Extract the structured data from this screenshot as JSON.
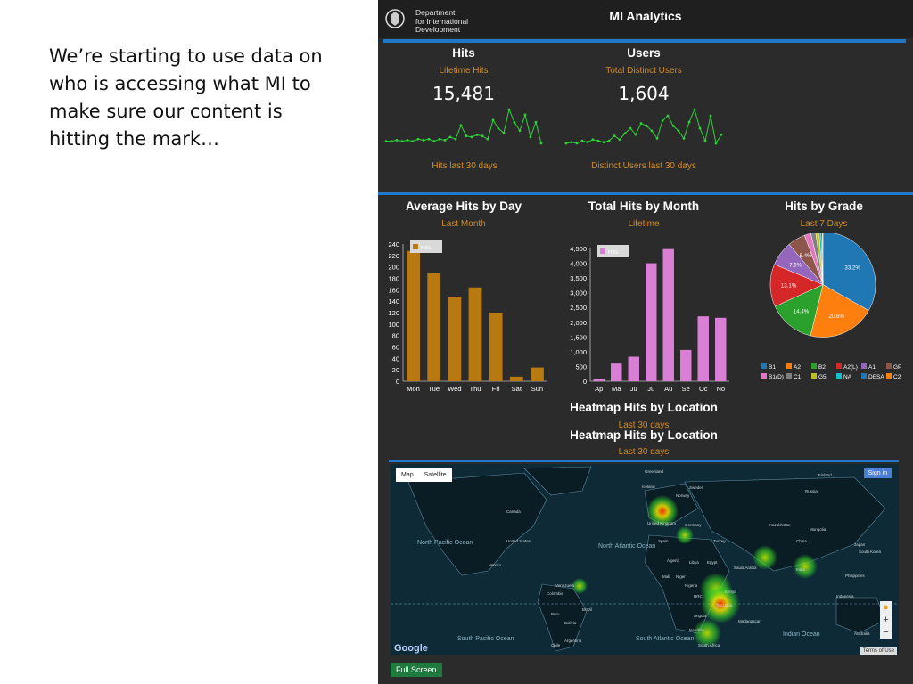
{
  "slide_text": "We’re starting to use data on who is accessing what MI to make sure our content is hitting the mark…",
  "header": {
    "dept_line1": "Department",
    "dept_line2": "for International",
    "dept_line3": "Development",
    "title": "MI Analytics"
  },
  "hits": {
    "title": "Hits",
    "subtitle": "Lifetime Hits",
    "value": "15,481",
    "footer": "Hits last 30 days"
  },
  "users": {
    "title": "Users",
    "subtitle": "Total Distinct Users",
    "value": "1,604",
    "footer": "Distinct Users last 30 days"
  },
  "avg_day": {
    "title": "Average Hits by Day",
    "subtitle": "Last Month"
  },
  "total_month": {
    "title": "Total Hits by Month",
    "subtitle": "Lifetime"
  },
  "grade": {
    "title": "Hits by Grade",
    "subtitle": "Last 7 Days"
  },
  "heatmap": {
    "title": "Heatmap Hits by Location",
    "subtitle": "Last 30 days"
  },
  "map": {
    "map_label": "Map",
    "satellite_label": "Satellite",
    "sign_in": "Sign in",
    "google": "Google",
    "terms": "Terms of Use",
    "full_screen": "Full Screen"
  },
  "colors": {
    "accent_blue": "#1f78c8",
    "orange_text": "#d38b23",
    "bar_gold": "#b87a10",
    "bar_pink": "#d97fd6",
    "sparkline": "#2fd23a"
  },
  "chart_data": [
    {
      "type": "line",
      "name": "hits-sparkline",
      "values": [
        10,
        10,
        11,
        10,
        11,
        10,
        12,
        11,
        12,
        10,
        12,
        11,
        14,
        12,
        25,
        15,
        14,
        16,
        15,
        12,
        30,
        22,
        18,
        40,
        28,
        20,
        35,
        14,
        28,
        8
      ]
    },
    {
      "type": "line",
      "name": "users-sparkline",
      "values": [
        8,
        9,
        8,
        10,
        9,
        11,
        10,
        9,
        10,
        14,
        11,
        16,
        20,
        15,
        24,
        22,
        18,
        12,
        26,
        30,
        22,
        18,
        12,
        25,
        35,
        20,
        10,
        30,
        8,
        15
      ]
    },
    {
      "type": "bar",
      "categories": [
        "Mon",
        "Tue",
        "Wed",
        "Thu",
        "Fri",
        "Sat",
        "Sun"
      ],
      "series": [
        {
          "name": "Hits",
          "values": [
            228,
            190,
            148,
            164,
            120,
            8,
            24
          ]
        }
      ],
      "yticks": [
        0,
        20,
        40,
        60,
        80,
        100,
        120,
        140,
        160,
        180,
        200,
        220,
        240
      ],
      "ylim": [
        0,
        240
      ]
    },
    {
      "type": "bar",
      "categories": [
        "Ap",
        "Ma",
        "Ju",
        "Ju",
        "Au",
        "Se",
        "Oc",
        "No"
      ],
      "series": [
        {
          "name": "Hits",
          "values": [
            80,
            600,
            830,
            4000,
            4480,
            1060,
            2200,
            2150
          ]
        }
      ],
      "yticks": [
        "0",
        "500",
        "1,000",
        "1,500",
        "2,000",
        "2,500",
        "3,000",
        "3,500",
        "4,000",
        "4,500"
      ],
      "ylim": [
        0,
        4500
      ]
    },
    {
      "type": "pie",
      "slices": [
        {
          "label": "B1",
          "value": 33.2,
          "color": "#1f77b4",
          "text": "33.2%"
        },
        {
          "label": "A2",
          "value": 20.6,
          "color": "#ff7f0e",
          "text": "20.6%"
        },
        {
          "label": "B2",
          "value": 14.4,
          "color": "#2ca02c",
          "text": "14.4%"
        },
        {
          "label": "A2(L)",
          "value": 13.1,
          "color": "#d62728",
          "text": "13.1%"
        },
        {
          "label": "A1",
          "value": 7.6,
          "color": "#9467bd",
          "text": "7.6%"
        },
        {
          "label": "GP",
          "value": 5.4,
          "color": "#8c564b",
          "text": "5.4%"
        },
        {
          "label": "B1(D)",
          "value": 2.0,
          "color": "#e377c2",
          "text": ""
        },
        {
          "label": "C1",
          "value": 1.5,
          "color": "#7f7f7f",
          "text": ""
        },
        {
          "label": "G5",
          "value": 1.0,
          "color": "#bcbd22",
          "text": ""
        },
        {
          "label": "NA",
          "value": 0.6,
          "color": "#17becf",
          "text": ""
        },
        {
          "label": "DESA",
          "value": 0.4,
          "color": "#1f77b4",
          "text": ""
        },
        {
          "label": "C2",
          "value": 0.2,
          "color": "#ff7f0e",
          "text": ""
        }
      ]
    }
  ],
  "map_labels": [
    "Greenland",
    "Iceland",
    "Finland",
    "Norway",
    "Sweden",
    "Russia",
    "Canada",
    "United Kingdom",
    "Germany",
    "Kazakhstan",
    "Mongolia",
    "United States",
    "Spain",
    "Turkey",
    "China",
    "Japan",
    "South Korea",
    "North Pacific Ocean",
    "North Atlantic Ocean",
    "Mexico",
    "Algeria",
    "Libya",
    "Egypt",
    "Saudi Arabia",
    "India",
    "Philippines",
    "Mali",
    "Niger",
    "Nigeria",
    "Venezuela",
    "Colombia",
    "Brazil",
    "Peru",
    "Bolivia",
    "DRC",
    "Kenya",
    "Tanzania",
    "Angola",
    "Namibia",
    "Madagascar",
    "South Africa",
    "Indonesia",
    "Australia",
    "Chile",
    "Argentina",
    "South Pacific Ocean",
    "South Atlantic Ocean",
    "Indian Ocean"
  ]
}
